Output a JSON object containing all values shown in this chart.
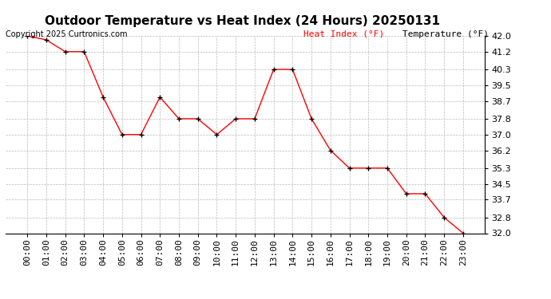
{
  "title": "Outdoor Temperature vs Heat Index (24 Hours) 20250131",
  "copyright": "Copyright 2025 Curtronics.com",
  "legend_heat": "Heat Index (°F)",
  "legend_temp": "Temperature (°F)",
  "hours": [
    "00:00",
    "01:00",
    "02:00",
    "03:00",
    "04:00",
    "05:00",
    "06:00",
    "07:00",
    "08:00",
    "09:00",
    "10:00",
    "11:00",
    "12:00",
    "13:00",
    "14:00",
    "15:00",
    "16:00",
    "17:00",
    "18:00",
    "19:00",
    "20:00",
    "21:00",
    "22:00",
    "23:00"
  ],
  "temperature": [
    42.0,
    41.8,
    41.2,
    41.2,
    38.9,
    37.0,
    37.0,
    38.9,
    37.8,
    37.8,
    37.0,
    37.8,
    37.8,
    40.3,
    40.3,
    37.8,
    36.2,
    35.3,
    35.3,
    35.3,
    34.0,
    34.0,
    32.8,
    32.0
  ],
  "heat_index": [
    42.0,
    41.8,
    41.2,
    41.2,
    38.9,
    37.0,
    37.0,
    38.9,
    37.8,
    37.8,
    37.0,
    37.8,
    37.8,
    40.3,
    40.3,
    37.8,
    36.2,
    35.3,
    35.3,
    35.3,
    34.0,
    34.0,
    32.8,
    32.0
  ],
  "ylim": [
    32.0,
    42.0
  ],
  "yticks": [
    32.0,
    32.8,
    33.7,
    34.5,
    35.3,
    36.2,
    37.0,
    37.8,
    38.7,
    39.5,
    40.3,
    41.2,
    42.0
  ],
  "line_color_heat": "#ff0000",
  "line_color_temp": "#000000",
  "marker_color": "#000000",
  "title_fontsize": 11,
  "copyright_fontsize": 7,
  "legend_fontsize": 8,
  "tick_fontsize": 8,
  "bg_color": "#ffffff",
  "grid_color": "#aaaaaa"
}
